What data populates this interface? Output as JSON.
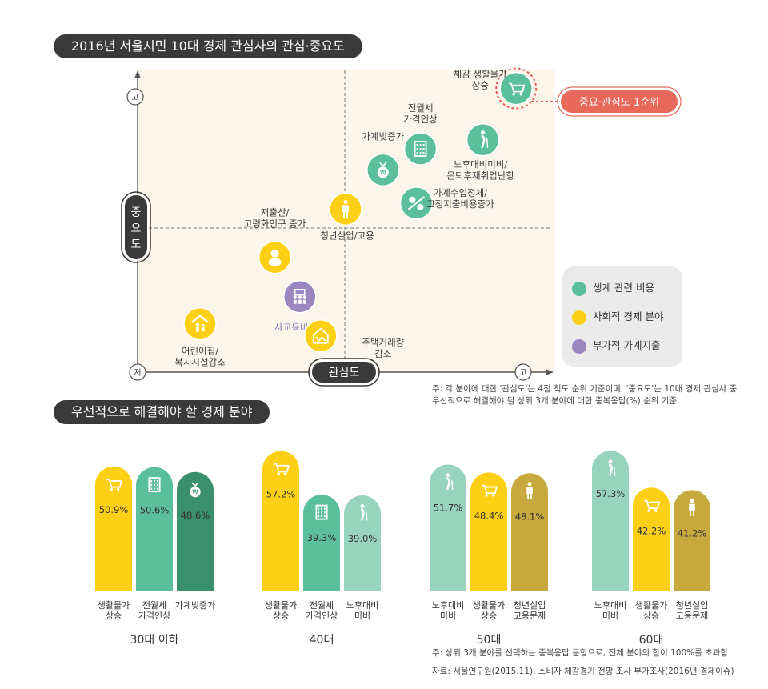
{
  "top": {
    "title": "2016년 서울시민 10대 경제 관심사의 관심·중요도",
    "yaxis_label": "중요도",
    "xaxis_label": "관심도",
    "y_high": "고",
    "y_low": "저",
    "x_high": "고",
    "top_badge": "중요·관심도 1순위",
    "note_line1": "주: 각 분야에 대한 '관심도'는 4점 척도 순위 기준이며, '중요도'는 10대 경제 관심사 중",
    "note_line2": "우선적으로 해결해야 될 상위 3개 분야에 대한 중복응답(%) 순위 기준"
  },
  "legend": {
    "items": [
      {
        "label": "생계 관련 비용",
        "color": "#5bbf9c"
      },
      {
        "label": "사회적 경제 분야",
        "color": "#fdd016"
      },
      {
        "label": "부가적 가계지출",
        "color": "#9b86c0"
      }
    ]
  },
  "bottom": {
    "title": "우선적으로 해결해야 할 경제 분야",
    "note1": "주: 상위 3개 분야를 선택하는 중복응답 문항으로, 전체 분야의 합이 100%를 초과함",
    "note2": "자료: 서울연구원(2015.11), 소비자 체감경기 전망 조사 부가조사(2016년 경제이슈)"
  },
  "chart_data": [
    {
      "type": "scatter",
      "title": "2016년 서울시민 10대 경제 관심사의 관심·중요도",
      "xlabel": "관심도",
      "ylabel": "중요도",
      "points": [
        {
          "label": "체감 생활물가 상승",
          "category": "생계 관련 비용",
          "icon": "cart-icon",
          "x": 0.91,
          "y": 0.94
        },
        {
          "label": "전월세 가격인상",
          "category": "생계 관련 비용",
          "icon": "building-icon",
          "x": 0.68,
          "y": 0.74
        },
        {
          "label": "노후대비미비/ 은퇴후재취업난항",
          "category": "생계 관련 비용",
          "icon": "elderly-icon",
          "x": 0.83,
          "y": 0.77
        },
        {
          "label": "가계빚증가",
          "category": "생계 관련 비용",
          "icon": "money-bag-icon",
          "x": 0.59,
          "y": 0.67
        },
        {
          "label": "가계수입정체/ 고정지출비용증가",
          "category": "생계 관련 비용",
          "icon": "house-money-icon",
          "x": 0.67,
          "y": 0.56
        },
        {
          "label": "청년실업/고용",
          "category": "사회적 경제 분야",
          "icon": "worker-icon",
          "x": 0.5,
          "y": 0.54
        },
        {
          "label": "저출산/ 고령화인구 증가",
          "category": "사회적 경제 분야",
          "icon": "baby-icon",
          "x": 0.33,
          "y": 0.38
        },
        {
          "label": "사교육비증가",
          "category": "부가적 가계지출",
          "icon": "students-icon",
          "x": 0.39,
          "y": 0.25
        },
        {
          "label": "주택거래량 감소",
          "category": "사회적 경제 분야",
          "icon": "house-chart-icon",
          "x": 0.44,
          "y": 0.12
        },
        {
          "label": "어린이집/ 복지시설감소",
          "category": "사회적 경제 분야",
          "icon": "daycare-icon",
          "x": 0.15,
          "y": 0.16
        }
      ]
    },
    {
      "type": "bar",
      "title": "우선적으로 해결해야 할 경제 분야",
      "ylim": [
        0,
        100
      ],
      "groups": [
        {
          "name": "30대 이하",
          "bars": [
            {
              "label": "생활물가 상승",
              "value": 50.9,
              "value_label": "50.9%",
              "color": "#fdd016",
              "icon": "cart-icon"
            },
            {
              "label": "전월세 가격인상",
              "value": 50.6,
              "value_label": "50.6%",
              "color": "#5bbf9c",
              "icon": "building-icon"
            },
            {
              "label": "가계빚증가",
              "value": 48.6,
              "value_label": "48.6%",
              "color": "#3a8f6e",
              "icon": "money-bag-icon"
            }
          ]
        },
        {
          "name": "40대",
          "bars": [
            {
              "label": "생활물가 상승",
              "value": 57.2,
              "value_label": "57.2%",
              "color": "#fdd016",
              "icon": "cart-icon"
            },
            {
              "label": "전월세 가격인상",
              "value": 39.3,
              "value_label": "39.3%",
              "color": "#5bbf9c",
              "icon": "building-icon"
            },
            {
              "label": "노후대비 미비",
              "value": 39.0,
              "value_label": "39.0%",
              "color": "#98d3bd",
              "icon": "elderly-icon"
            }
          ]
        },
        {
          "name": "50대",
          "bars": [
            {
              "label": "노후대비 미비",
              "value": 51.7,
              "value_label": "51.7%",
              "color": "#98d3bd",
              "icon": "elderly-icon"
            },
            {
              "label": "생활물가 상승",
              "value": 48.4,
              "value_label": "48.4%",
              "color": "#fdd016",
              "icon": "cart-icon"
            },
            {
              "label": "청년실업 고용문제",
              "value": 48.1,
              "value_label": "48.1%",
              "color": "#c7a93e",
              "icon": "worker-icon"
            }
          ]
        },
        {
          "name": "60대",
          "bars": [
            {
              "label": "노후대비 미비",
              "value": 57.3,
              "value_label": "57.3%",
              "color": "#98d3bd",
              "icon": "elderly-icon"
            },
            {
              "label": "생활물가 상승",
              "value": 42.2,
              "value_label": "42.2%",
              "color": "#fdd016",
              "icon": "cart-icon"
            },
            {
              "label": "청년실업 고용문제",
              "value": 41.2,
              "value_label": "41.2%",
              "color": "#c7a93e",
              "icon": "worker-icon"
            }
          ]
        }
      ]
    }
  ]
}
